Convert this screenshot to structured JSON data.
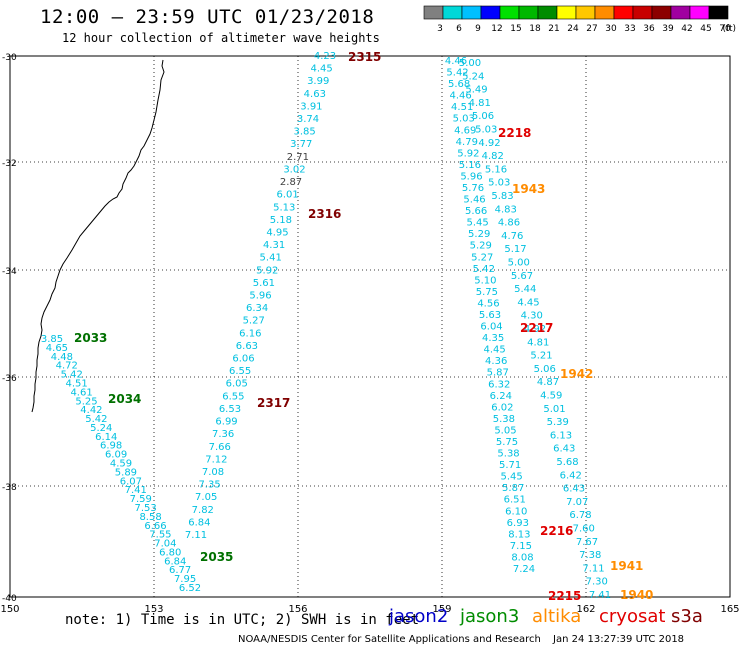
{
  "header": {
    "title": "12:00 – 23:59 UTC 01/23/2018",
    "subtitle": "12 hour collection of altimeter wave heights"
  },
  "legend": {
    "unit": "(ft)",
    "bins": [
      {
        "label": "3",
        "color": "#808080"
      },
      {
        "label": "6",
        "color": "#00d8d8"
      },
      {
        "label": "9",
        "color": "#00c0ff"
      },
      {
        "label": "12",
        "color": "#0000ff"
      },
      {
        "label": "15",
        "color": "#00e000"
      },
      {
        "label": "18",
        "color": "#00b800"
      },
      {
        "label": "21",
        "color": "#008c00"
      },
      {
        "label": "24",
        "color": "#ffff00"
      },
      {
        "label": "27",
        "color": "#ffc800"
      },
      {
        "label": "30",
        "color": "#ff8c00"
      },
      {
        "label": "33",
        "color": "#ff0000"
      },
      {
        "label": "36",
        "color": "#c80000"
      },
      {
        "label": "39",
        "color": "#8c0000"
      },
      {
        "label": "42",
        "color": "#a000a0"
      },
      {
        "label": "45",
        "color": "#ff00ff"
      },
      {
        "label": "70",
        "color": "#000000"
      }
    ]
  },
  "map": {
    "x_ticks": [
      "150",
      "153",
      "156",
      "159",
      "162",
      "165"
    ],
    "y_ticks": [
      "-30",
      "-32",
      "-34",
      "-36",
      "-38",
      "-40"
    ]
  },
  "tracks": {
    "colors": {
      "low": "#00c0e0",
      "mid": "#808080",
      "high": "#404040"
    },
    "jason3_a": {
      "time_labels": [
        {
          "text": "2033",
          "color": "#007000"
        },
        {
          "text": "2034",
          "color": "#007000"
        },
        {
          "text": "2035",
          "color": "#007000"
        }
      ],
      "values": [
        "3.85",
        "4.65",
        "4.48",
        "4.72",
        "5.42",
        "4.51",
        "4.61",
        "5.25",
        "4.42",
        "5.42",
        "5.24",
        "6.14",
        "6.98",
        "6.09",
        "4.59",
        "5.89",
        "6.07",
        "7.41",
        "7.59",
        "7.53",
        "8.58",
        "6.66",
        "7.55",
        "7.04",
        "6.80",
        "6.84",
        "6.77",
        "7.95",
        "6.52"
      ]
    },
    "s3a_a": {
      "time_labels": [
        {
          "text": "2315",
          "color": "#800000"
        },
        {
          "text": "2316",
          "color": "#800000"
        },
        {
          "text": "2317",
          "color": "#800000"
        }
      ],
      "values": [
        "4.23",
        "4.45",
        "3.99",
        "4.63",
        "3.91",
        "3.74",
        "3.85",
        "3.77",
        "2.71",
        "3.02",
        "2.87",
        "6.01",
        "5.13",
        "5.18",
        "4.95",
        "4.31",
        "5.41",
        "5.92",
        "5.61",
        "5.96",
        "6.34",
        "5.27",
        "6.16",
        "6.63",
        "6.06",
        "6.55",
        "6.05",
        "6.55",
        "6.53",
        "6.99",
        "7.36",
        "7.66",
        "7.12",
        "7.08",
        "7.35",
        "7.05",
        "7.82",
        "6.84",
        "7.11"
      ]
    },
    "multi": {
      "time_labels": [
        {
          "text": "2218",
          "color": "#e00000"
        },
        {
          "text": "1943",
          "color": "#ff8c00"
        },
        {
          "text": "2217",
          "color": "#e00000"
        },
        {
          "text": "1942",
          "color": "#ff8c00"
        },
        {
          "text": "2216",
          "color": "#e00000"
        },
        {
          "text": "1941",
          "color": "#ff8c00"
        },
        {
          "text": "1940",
          "color": "#ff8c00"
        },
        {
          "text": "2215",
          "color": "#e00000"
        }
      ],
      "left_values": [
        "4.46",
        "5.42",
        "5.68",
        "4.46",
        "4.51",
        "5.03",
        "4.69",
        "4.79",
        "5.92",
        "5.16",
        "5.96",
        "5.76",
        "5.46",
        "5.66",
        "5.45",
        "5.29",
        "5.29",
        "5.27",
        "5.42",
        "5.10",
        "5.75",
        "4.56",
        "5.63",
        "6.04",
        "4.35",
        "4.45",
        "4.36",
        "5.87",
        "6.32",
        "6.24",
        "6.02",
        "5.38",
        "5.05",
        "5.75",
        "5.38",
        "5.71",
        "5.45",
        "5.87",
        "6.51",
        "6.10",
        "6.93",
        "8.13",
        "7.15",
        "8.08",
        "7.24"
      ],
      "right_values": [
        "5.00",
        "5.24",
        "5.49",
        "4.81",
        "5.06",
        "5.03",
        "4.92",
        "4.82",
        "5.16",
        "5.03",
        "5.83",
        "4.83",
        "4.86",
        "4.76",
        "5.17",
        "5.00",
        "5.67",
        "5.44",
        "4.45",
        "4.30",
        "4.92",
        "4.81",
        "5.21",
        "5.06",
        "4.87",
        "4.59",
        "5.01",
        "5.39",
        "6.13",
        "6.43",
        "5.68",
        "6.42",
        "6.43",
        "7.07",
        "6.78",
        "7.60",
        "7.67",
        "7.38",
        "7.11",
        "7.30",
        "7.41"
      ]
    }
  },
  "footer": {
    "note": "note: 1) Time is in UTC; 2) SWH is in feet",
    "credit": "NOAA/NESDIS Center for Satellite Applications and Research",
    "timestamp": "Jan 24 13:27:39 UTC 2018",
    "satellites": [
      {
        "name": "jason2",
        "color": "#0000c8"
      },
      {
        "name": "jason3",
        "color": "#008c00"
      },
      {
        "name": "altika",
        "color": "#ff8c00"
      },
      {
        "name": "cryosat",
        "color": "#e00000"
      },
      {
        "name": "s3a",
        "color": "#800000"
      }
    ]
  }
}
